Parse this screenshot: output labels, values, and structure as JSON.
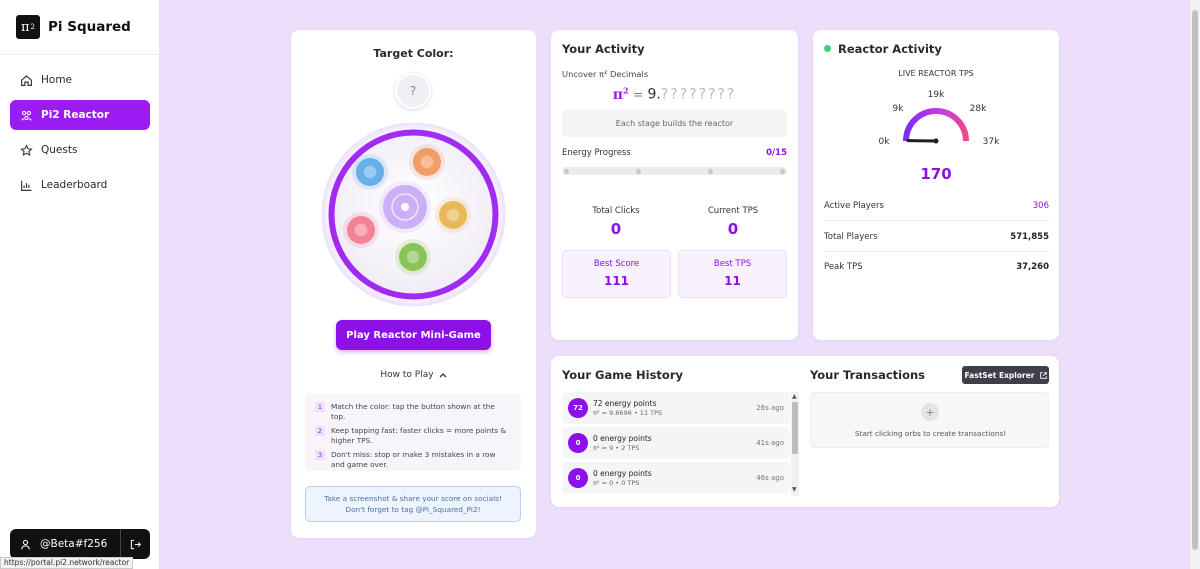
{
  "app": {
    "logo_symbol": "π",
    "logo_sup": "2",
    "name": "Pi Squared"
  },
  "sidebar": {
    "items": [
      {
        "label": "Home",
        "icon": "home-icon"
      },
      {
        "label": "Pi2 Reactor",
        "icon": "reactor-icon",
        "active": true
      },
      {
        "label": "Quests",
        "icon": "star-icon"
      },
      {
        "label": "Leaderboard",
        "icon": "bar-chart-icon"
      }
    ],
    "user": "@Beta#f256",
    "status_url": "https://portal.pi2.network/reactor"
  },
  "colors": {
    "accent": "#8d10e8",
    "accent_bright": "#9b1cf2",
    "live": "#3dd17c"
  },
  "game": {
    "target_label": "Target Color:",
    "target_value": "?",
    "orbs": [
      {
        "name": "blue-orb",
        "color": "#5aa9e6"
      },
      {
        "name": "orange-orb",
        "color": "#f0955a"
      },
      {
        "name": "pink-orb",
        "color": "#f07a8c"
      },
      {
        "name": "yellow-orb",
        "color": "#e8b34a"
      },
      {
        "name": "green-orb",
        "color": "#7ec04a"
      },
      {
        "name": "center-orb",
        "color": "#c8a8f5"
      }
    ],
    "play_label": "Play Reactor Mini-Game",
    "how_to_play": "How to Play",
    "rules": [
      {
        "num": "1",
        "text": "Match the color: tap the button shown at the top."
      },
      {
        "num": "2",
        "text": "Keep tapping fast: faster clicks = more points & higher TPS."
      },
      {
        "num": "3",
        "text": "Don't miss: stop or make 3 mistakes in a row and game over."
      }
    ],
    "share_text": "Take a screenshot & share your score on socials! Don't forget to tag @Pi_Squared_Pi2!"
  },
  "activity": {
    "title": "Your Activity",
    "uncover_label": "Uncover π² Decimals",
    "pi_symbol": "π",
    "pi_sup": "2",
    "pi_eq": "=",
    "pi_value": "9.",
    "pi_hidden": "????????",
    "stage_text": "Each stage builds the reactor",
    "energy_label": "Energy Progress",
    "energy_value": "0/15",
    "energy_progress": 0,
    "total_clicks_label": "Total Clicks",
    "total_clicks": "0",
    "current_tps_label": "Current TPS",
    "current_tps": "0",
    "best_score_label": "Best Score",
    "best_score": "111",
    "best_tps_label": "Best TPS",
    "best_tps": "11"
  },
  "reactor": {
    "title": "Reactor Activity",
    "live_label": "LIVE REACTOR TPS",
    "gauge_ticks": [
      "0k",
      "9k",
      "19k",
      "28k",
      "37k"
    ],
    "gauge_min": 0,
    "gauge_max": 37000,
    "gauge_value": 170,
    "value_display": "170",
    "active_players_label": "Active Players",
    "active_players": "306",
    "total_players_label": "Total Players",
    "total_players": "571,855",
    "peak_tps_label": "Peak TPS",
    "peak_tps": "37,260"
  },
  "history": {
    "title": "Your Game History",
    "items": [
      {
        "score": "72",
        "title": "72 energy points",
        "detail": "π² = 9.8696 • 11 TPS",
        "ago": "26s ago"
      },
      {
        "score": "0",
        "title": "0 energy points",
        "detail": "π² = 9 • 2 TPS",
        "ago": "41s ago"
      },
      {
        "score": "0",
        "title": "0 energy points",
        "detail": "π² = 0 • 0 TPS",
        "ago": "46s ago"
      }
    ]
  },
  "transactions": {
    "title": "Your Transactions",
    "explorer_label": "FastSet Explorer",
    "plus": "+",
    "empty_text": "Start clicking orbs to create transactions!"
  }
}
